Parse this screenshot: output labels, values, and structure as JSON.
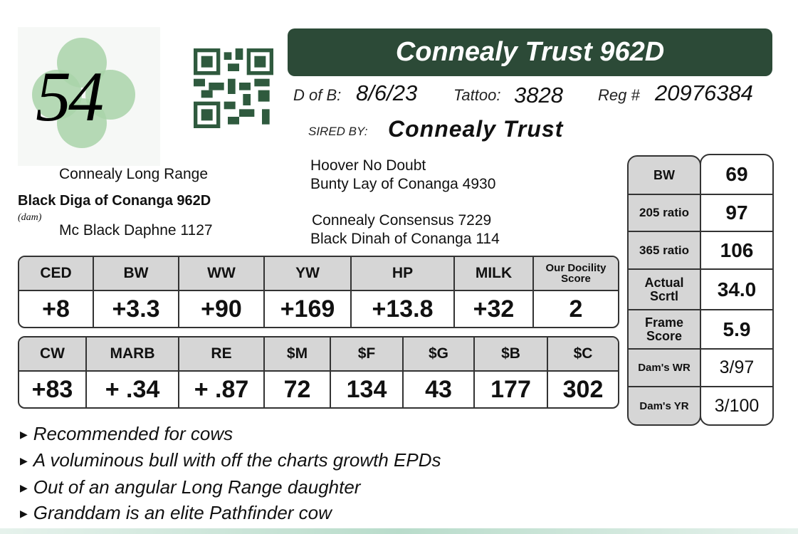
{
  "lot_number": "54",
  "title": "Connealy Trust 962D",
  "info": {
    "dob_label": "D of B:",
    "dob": "8/6/23",
    "tattoo_label": "Tattoo:",
    "tattoo": "3828",
    "reg_label": "Reg #",
    "reg": "20976384",
    "sired_label": "SIRED BY:",
    "sire": "Connealy Trust"
  },
  "pedigree": {
    "dam_sire": "Connealy Long Range",
    "animal": "Black Diga of Conanga 962D",
    "dam_label": "(dam)",
    "dam": "Mc Black Daphne 1127",
    "sire_sire": "Hoover No Doubt",
    "sire_dam": "Bunty Lay of Conanga 4930",
    "dam_sire2": "Connealy Consensus 7229",
    "dam_dam": "Black Dinah of Conanga 114"
  },
  "epd1": {
    "headers": [
      "CED",
      "BW",
      "WW",
      "YW",
      "HP",
      "MILK",
      "Our Docility Score"
    ],
    "values": [
      "+8",
      "+3.3",
      "+90",
      "+169",
      "+13.8",
      "+32",
      "2"
    ]
  },
  "epd2": {
    "headers": [
      "CW",
      "MARB",
      "RE",
      "$M",
      "$F",
      "$G",
      "$B",
      "$C"
    ],
    "values": [
      "+83",
      "+ .34",
      "+ .87",
      "72",
      "134",
      "43",
      "177",
      "302"
    ]
  },
  "stats": [
    {
      "label": "BW",
      "value": "69"
    },
    {
      "label": "205 ratio",
      "value": "97"
    },
    {
      "label": "365 ratio",
      "value": "106"
    },
    {
      "label": "Actual Scrtl",
      "value": "34.0"
    },
    {
      "label": "Frame Score",
      "value": "5.9"
    },
    {
      "label": "Dam's WR",
      "value": "3/97"
    },
    {
      "label": "Dam's YR",
      "value": "3/100"
    }
  ],
  "notes": [
    "Recommended for cows",
    "A voluminous bull with off the charts growth EPDs",
    "Out of an angular Long Range daughter",
    "Granddam is an elite Pathfinder cow"
  ],
  "colors": {
    "title_bg": "#2c4a37",
    "header_cell": "#d6d6d6",
    "shamrock": "#a9d3a9"
  }
}
